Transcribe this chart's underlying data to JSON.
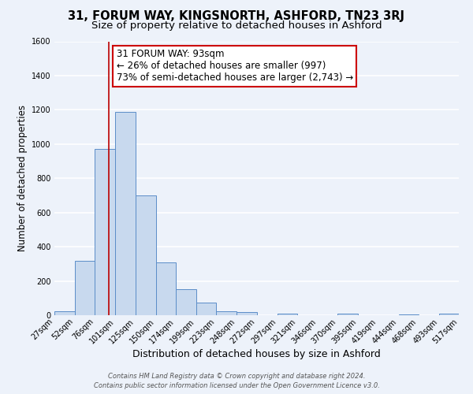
{
  "title": "31, FORUM WAY, KINGSNORTH, ASHFORD, TN23 3RJ",
  "subtitle": "Size of property relative to detached houses in Ashford",
  "xlabel": "Distribution of detached houses by size in Ashford",
  "ylabel": "Number of detached properties",
  "bar_edges": [
    27,
    52,
    76,
    101,
    125,
    150,
    174,
    199,
    223,
    248,
    272,
    297,
    321,
    346,
    370,
    395,
    419,
    444,
    468,
    493,
    517
  ],
  "bar_heights": [
    25,
    320,
    970,
    1190,
    700,
    310,
    150,
    75,
    25,
    20,
    0,
    10,
    0,
    0,
    10,
    0,
    0,
    5,
    0,
    10
  ],
  "bar_color": "#c8d9ee",
  "bar_edge_color": "#5b8dc8",
  "red_line_x": 93,
  "annotation_line1": "31 FORUM WAY: 93sqm",
  "annotation_line2": "← 26% of detached houses are smaller (997)",
  "annotation_line3": "73% of semi-detached houses are larger (2,743) →",
  "annotation_box_facecolor": "#ffffff",
  "annotation_box_edgecolor": "#cc0000",
  "ylim": [
    0,
    1600
  ],
  "yticks": [
    0,
    200,
    400,
    600,
    800,
    1000,
    1200,
    1400,
    1600
  ],
  "xtick_labels": [
    "27sqm",
    "52sqm",
    "76sqm",
    "101sqm",
    "125sqm",
    "150sqm",
    "174sqm",
    "199sqm",
    "223sqm",
    "248sqm",
    "272sqm",
    "297sqm",
    "321sqm",
    "346sqm",
    "370sqm",
    "395sqm",
    "419sqm",
    "444sqm",
    "468sqm",
    "493sqm",
    "517sqm"
  ],
  "footer1": "Contains HM Land Registry data © Crown copyright and database right 2024.",
  "footer2": "Contains public sector information licensed under the Open Government Licence v3.0.",
  "bg_color": "#edf2fa",
  "grid_color": "#ffffff",
  "title_fontsize": 10.5,
  "subtitle_fontsize": 9.5,
  "xlabel_fontsize": 9,
  "ylabel_fontsize": 8.5,
  "tick_fontsize": 7,
  "annotation_fontsize": 8.5,
  "footer_fontsize": 6
}
